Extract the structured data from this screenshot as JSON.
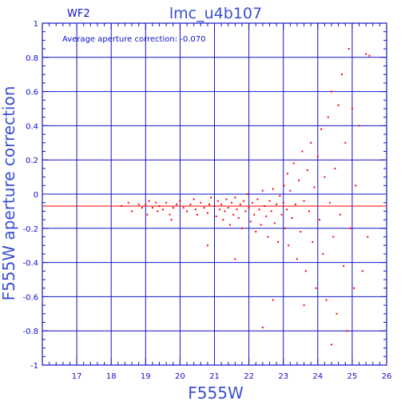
{
  "chart_data": {
    "type": "scatter",
    "title": "lmc_u4b107",
    "panel_label": "WF2",
    "annotation": "Average aperture correction:  -0.070",
    "xlabel": "F555W",
    "ylabel": "F555W  aperture  correction",
    "xlim": [
      16,
      26
    ],
    "ylim": [
      -1,
      1
    ],
    "x_ticks": [
      17,
      18,
      19,
      20,
      21,
      22,
      23,
      24,
      25,
      26
    ],
    "y_ticks": [
      -1,
      -0.8,
      -0.6,
      -0.4,
      -0.2,
      0,
      0.2,
      0.4,
      0.6,
      0.8,
      1
    ],
    "x_tick_labels": [
      "17",
      "18",
      "19",
      "20",
      "21",
      "22",
      "23",
      "24",
      "25",
      "26"
    ],
    "y_tick_labels": [
      "-1",
      "-0.8",
      "-0.6",
      "-0.4",
      "-0.2",
      "0",
      "0.2",
      "0.4",
      "0.6",
      "0.8",
      "1"
    ],
    "grid": true,
    "reference_line": {
      "y": -0.07
    },
    "series": [
      {
        "points": [
          [
            18.3,
            -0.07
          ],
          [
            18.5,
            -0.05
          ],
          [
            18.6,
            -0.1
          ],
          [
            18.8,
            -0.06
          ],
          [
            18.9,
            -0.08
          ],
          [
            19.0,
            -0.06
          ],
          [
            19.05,
            -0.12
          ],
          [
            19.1,
            -0.04
          ],
          [
            19.2,
            -0.08
          ],
          [
            19.3,
            -0.05
          ],
          [
            19.35,
            -0.1
          ],
          [
            19.4,
            -0.07
          ],
          [
            19.5,
            -0.09
          ],
          [
            19.6,
            -0.05
          ],
          [
            19.7,
            -0.12
          ],
          [
            19.75,
            -0.15
          ],
          [
            19.8,
            -0.08
          ],
          [
            19.9,
            -0.06
          ],
          [
            20.0,
            -0.04
          ],
          [
            20.1,
            -0.08
          ],
          [
            20.2,
            -0.1
          ],
          [
            20.3,
            -0.06
          ],
          [
            20.4,
            -0.03
          ],
          [
            20.45,
            -0.09
          ],
          [
            20.5,
            -0.12
          ],
          [
            20.6,
            -0.05
          ],
          [
            20.7,
            -0.08
          ],
          [
            20.8,
            -0.11
          ],
          [
            20.85,
            -0.06
          ],
          [
            20.9,
            -0.02
          ],
          [
            21.0,
            -0.07
          ],
          [
            21.05,
            -0.13
          ],
          [
            21.1,
            -0.04
          ],
          [
            21.15,
            -0.09
          ],
          [
            21.2,
            -0.06
          ],
          [
            21.25,
            -0.15
          ],
          [
            21.3,
            -0.1
          ],
          [
            21.35,
            -0.03
          ],
          [
            21.4,
            -0.08
          ],
          [
            21.45,
            -0.18
          ],
          [
            21.5,
            -0.05
          ],
          [
            21.55,
            -0.12
          ],
          [
            21.6,
            -0.02
          ],
          [
            21.65,
            -0.09
          ],
          [
            21.7,
            -0.14
          ],
          [
            21.75,
            -0.06
          ],
          [
            21.8,
            -0.2
          ],
          [
            21.85,
            -0.04
          ],
          [
            21.9,
            -0.1
          ],
          [
            21.95,
            0.0
          ],
          [
            22.0,
            -0.08
          ],
          [
            22.05,
            -0.16
          ],
          [
            22.1,
            -0.05
          ],
          [
            22.15,
            -0.12
          ],
          [
            22.2,
            -0.22
          ],
          [
            22.25,
            -0.03
          ],
          [
            22.3,
            -0.09
          ],
          [
            22.35,
            -0.18
          ],
          [
            22.4,
            0.02
          ],
          [
            22.45,
            -0.07
          ],
          [
            22.5,
            -0.13
          ],
          [
            22.55,
            -0.25
          ],
          [
            22.6,
            -0.04
          ],
          [
            22.65,
            -0.1
          ],
          [
            22.7,
            0.03
          ],
          [
            22.75,
            -0.17
          ],
          [
            22.8,
            -0.06
          ],
          [
            22.85,
            -0.28
          ],
          [
            22.9,
            -0.01
          ],
          [
            22.95,
            -0.12
          ],
          [
            23.0,
            -0.05
          ],
          [
            23.02,
            0.05
          ],
          [
            23.05,
            -0.2
          ],
          [
            23.1,
            -0.09
          ],
          [
            23.12,
            0.12
          ],
          [
            23.15,
            -0.3
          ],
          [
            23.2,
            0.02
          ],
          [
            23.25,
            -0.14
          ],
          [
            23.3,
            0.18
          ],
          [
            23.35,
            -0.06
          ],
          [
            23.4,
            -0.38
          ],
          [
            23.45,
            0.08
          ],
          [
            23.5,
            -0.22
          ],
          [
            23.55,
            0.25
          ],
          [
            23.6,
            -0.04
          ],
          [
            23.65,
            -0.45
          ],
          [
            23.7,
            0.14
          ],
          [
            23.75,
            -0.1
          ],
          [
            23.8,
            0.3
          ],
          [
            23.85,
            -0.28
          ],
          [
            23.9,
            0.04
          ],
          [
            23.95,
            -0.55
          ],
          [
            24.0,
            0.22
          ],
          [
            24.05,
            -0.15
          ],
          [
            24.1,
            0.38
          ],
          [
            24.15,
            -0.35
          ],
          [
            24.2,
            0.1
          ],
          [
            24.25,
            -0.62
          ],
          [
            24.3,
            0.45
          ],
          [
            24.35,
            -0.05
          ],
          [
            24.4,
            0.6
          ],
          [
            24.45,
            -0.25
          ],
          [
            24.5,
            0.15
          ],
          [
            24.55,
            -0.7
          ],
          [
            24.6,
            0.52
          ],
          [
            24.65,
            -0.12
          ],
          [
            24.7,
            0.7
          ],
          [
            24.75,
            -0.42
          ],
          [
            24.8,
            0.3
          ],
          [
            24.85,
            -0.8
          ],
          [
            24.9,
            0.85
          ],
          [
            24.95,
            -0.2
          ],
          [
            25.0,
            0.5
          ],
          [
            25.05,
            -0.55
          ],
          [
            25.1,
            0.05
          ],
          [
            25.2,
            0.4
          ],
          [
            25.3,
            -0.45
          ],
          [
            25.4,
            0.82
          ],
          [
            25.45,
            -0.25
          ],
          [
            22.4,
            -0.78
          ],
          [
            22.7,
            -0.62
          ],
          [
            21.6,
            -0.38
          ],
          [
            20.8,
            -0.3
          ],
          [
            23.6,
            -0.65
          ],
          [
            24.4,
            -0.88
          ],
          [
            25.5,
            0.81
          ]
        ]
      }
    ],
    "colors": {
      "points": "#ff0000",
      "reference_line": "#ff0000",
      "grid": "#1414c8",
      "text": "#1010cc"
    }
  }
}
